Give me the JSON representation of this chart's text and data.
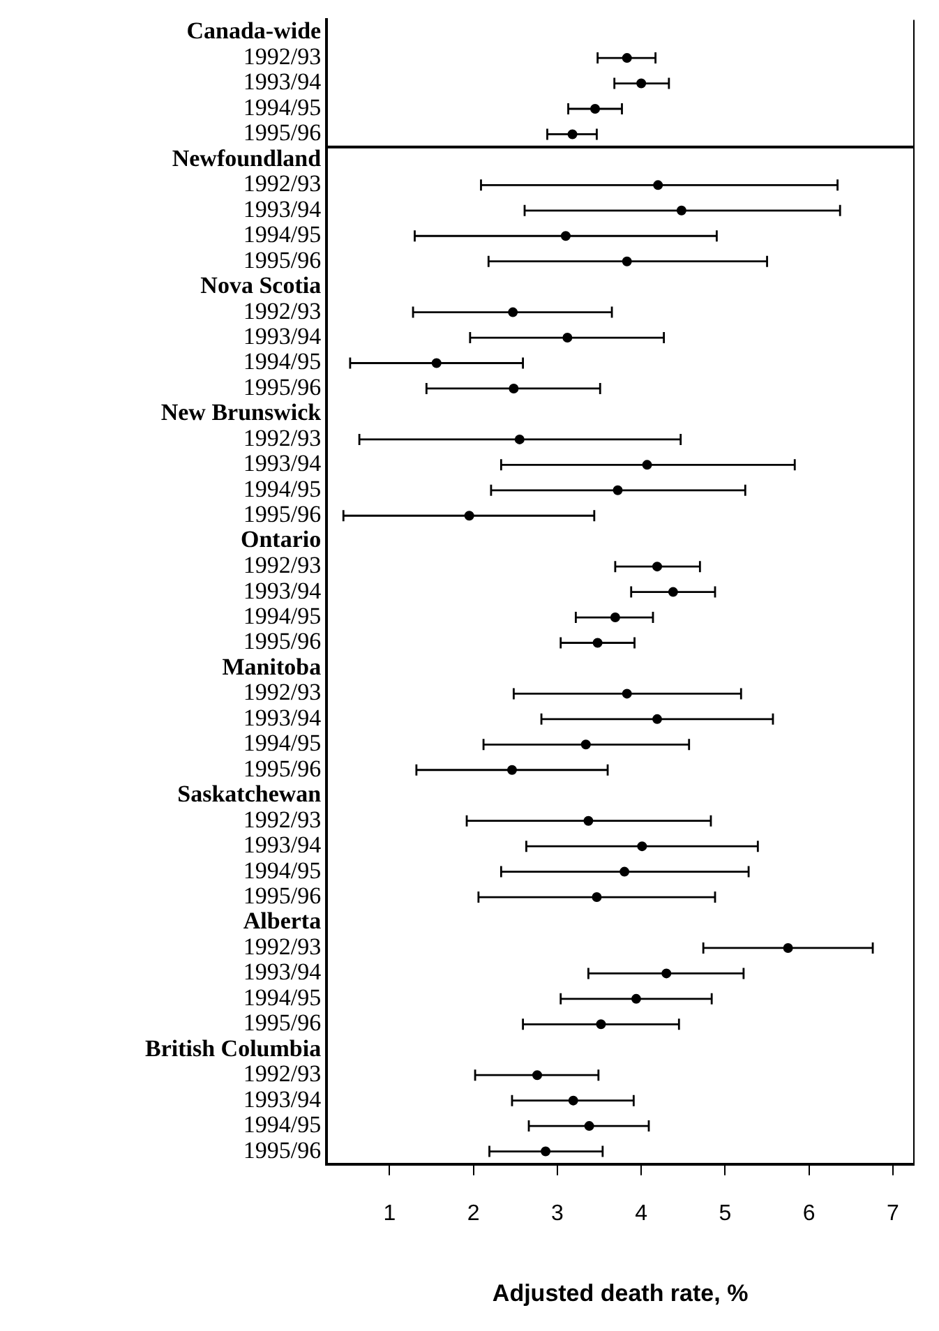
{
  "chart_data": {
    "type": "scatter",
    "orientation": "horizontal",
    "xlabel": "Adjusted death rate, %",
    "categories": [
      "Canada-wide",
      "1992/93",
      "1993/94",
      "1994/95",
      "1995/96",
      "Newfoundland",
      "1992/93",
      "1993/94",
      "1994/95",
      "1995/96",
      "Nova Scotia",
      "1992/93",
      "1993/94",
      "1994/95",
      "1995/96",
      "New Brunswick",
      "1992/93",
      "1993/94",
      "1994/95",
      "1995/96",
      "Ontario",
      "1992/93",
      "1993/94",
      "1994/95",
      "1995/96",
      "Manitoba",
      "1992/93",
      "1993/94",
      "1994/95",
      "1995/96",
      "Saskatchewan",
      "1992/93",
      "1993/94",
      "1994/95",
      "1995/96",
      "Alberta",
      "1992/93",
      "1993/94",
      "1994/95",
      "1995/96",
      "British Columbia",
      "1992/93",
      "1993/94",
      "1994/95",
      "1995/96"
    ],
    "values": [
      null,
      3.83,
      4.0,
      3.45,
      3.18,
      null,
      4.2,
      4.48,
      3.1,
      3.83,
      null,
      2.47,
      3.12,
      1.56,
      2.48,
      null,
      2.55,
      4.07,
      3.72,
      1.95,
      null,
      4.19,
      4.38,
      3.69,
      3.48,
      null,
      3.83,
      4.19,
      3.34,
      2.46,
      null,
      3.37,
      4.01,
      3.8,
      3.47,
      null,
      5.75,
      4.3,
      3.94,
      3.52,
      null,
      2.76,
      3.19,
      3.38,
      2.86
    ],
    "errors": [
      null,
      [
        3.48,
        4.17
      ],
      [
        3.68,
        4.33
      ],
      [
        3.13,
        3.77
      ],
      [
        2.88,
        3.47
      ],
      null,
      [
        2.09,
        6.34
      ],
      [
        2.61,
        6.37
      ],
      [
        1.3,
        4.9
      ],
      [
        2.18,
        5.5
      ],
      null,
      [
        1.28,
        3.65
      ],
      [
        1.96,
        4.27
      ],
      [
        0.53,
        2.59
      ],
      [
        1.44,
        3.51
      ],
      null,
      [
        0.64,
        4.47
      ],
      [
        2.33,
        5.83
      ],
      [
        2.21,
        5.24
      ],
      [
        0.45,
        3.44
      ],
      null,
      [
        3.69,
        4.7
      ],
      [
        3.88,
        4.88
      ],
      [
        3.22,
        4.14
      ],
      [
        3.04,
        3.92
      ],
      null,
      [
        2.48,
        5.19
      ],
      [
        2.81,
        5.57
      ],
      [
        2.12,
        4.57
      ],
      [
        1.32,
        3.6
      ],
      null,
      [
        1.92,
        4.83
      ],
      [
        2.63,
        5.39
      ],
      [
        2.33,
        5.28
      ],
      [
        2.06,
        4.88
      ],
      null,
      [
        4.74,
        6.76
      ],
      [
        3.37,
        5.22
      ],
      [
        3.04,
        4.84
      ],
      [
        2.59,
        4.45
      ],
      null,
      [
        2.02,
        3.49
      ],
      [
        2.46,
        3.91
      ],
      [
        2.66,
        4.09
      ],
      [
        2.19,
        3.54
      ]
    ],
    "color": "#000000",
    "marker": "circle",
    "xlim": [
      0.25,
      7.25
    ],
    "xticks": [
      1,
      2,
      3,
      4,
      5,
      6,
      7
    ],
    "grid": false,
    "legend": false
  }
}
